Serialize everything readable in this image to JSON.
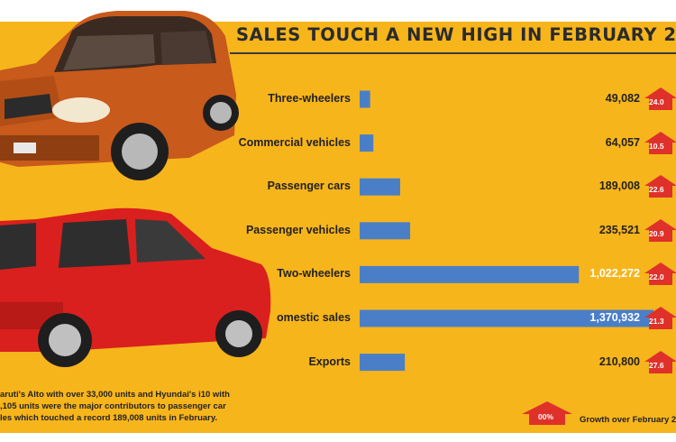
{
  "header": {
    "title": "SALES TOUCH A NEW HIGH IN FEBRUARY 2"
  },
  "chart_data": {
    "type": "bar",
    "orientation": "horizontal",
    "title": "SALES TOUCH A NEW HIGH IN FEBRUARY 2",
    "categories": [
      "Three-wheelers",
      "Commercial vehicles",
      "Passenger cars",
      "Passenger vehicles",
      "Two-wheelers",
      "omestic sales",
      "Exports"
    ],
    "values": [
      49082,
      64057,
      189008,
      235521,
      1022272,
      1370932,
      210800
    ],
    "value_labels": [
      "49,082",
      "64,057",
      "189,008",
      "235,521",
      "1,022,272",
      "1,370,932",
      "210,800"
    ],
    "growth_labels": [
      "24.0",
      "10.5",
      "22.6",
      "20.9",
      "22.0",
      "21.3",
      "27.6"
    ],
    "bar_color": "#4a7fc8",
    "growth_color": "#e0302a",
    "background_color": "#f7b51c",
    "grid": false,
    "legend": {
      "badge_label": "00%",
      "text": "Growth over February 2"
    }
  },
  "caption": {
    "lines": [
      "aruti's Alto with over 33,000 units and Hyundai's i10 with",
      ",105 units were the major contributors to passenger car",
      "les which touched a record 189,008 units in February."
    ]
  },
  "images": {
    "top_car": "orange-hatchback-car",
    "bottom_car": "red-hatchback-car"
  }
}
